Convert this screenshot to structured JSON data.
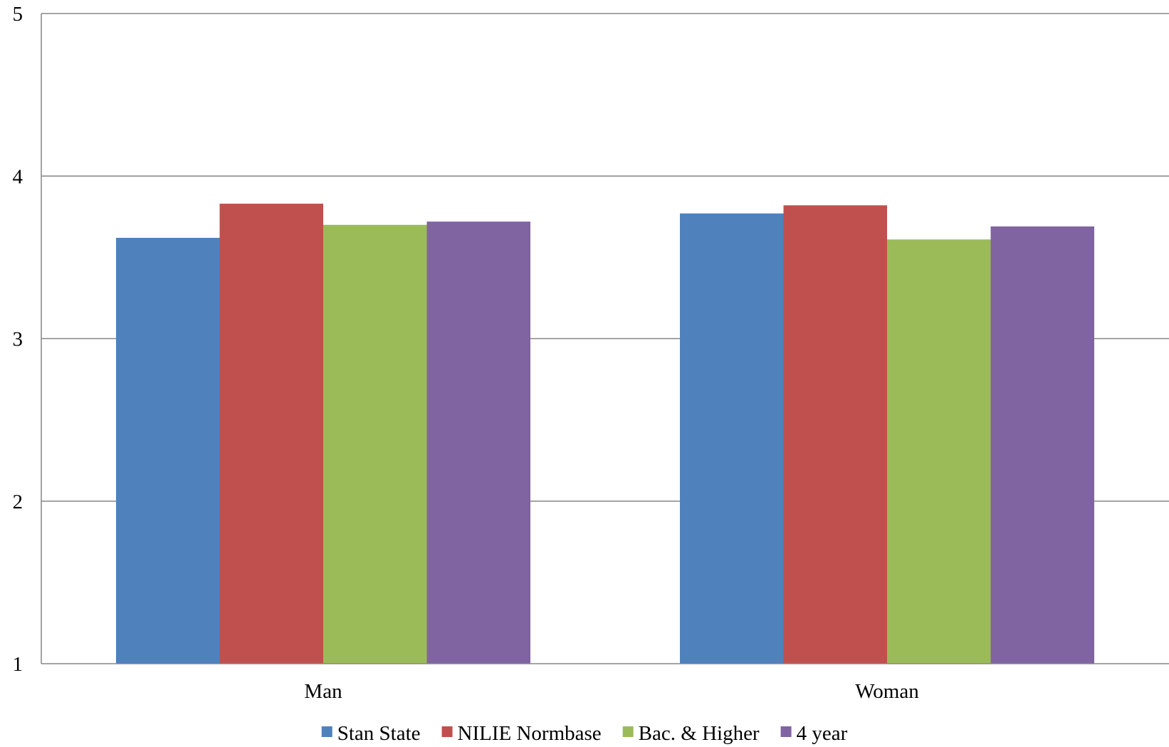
{
  "chart_data": {
    "type": "bar",
    "title": "",
    "xlabel": "",
    "ylabel": "",
    "categories": [
      "Man",
      "Woman"
    ],
    "series": [
      {
        "name": "Stan State",
        "color": "#4F81BD",
        "values": [
          3.62,
          3.77
        ]
      },
      {
        "name": "NILIE Normbase",
        "color": "#C0504D",
        "values": [
          3.83,
          3.82
        ]
      },
      {
        "name": "Bac. & Higher",
        "color": "#9BBB59",
        "values": [
          3.7,
          3.61
        ]
      },
      {
        "name": "4 year",
        "color": "#8064A2",
        "values": [
          3.72,
          3.69
        ]
      }
    ],
    "ylim": [
      1,
      5
    ],
    "yticks": [
      "1",
      "2",
      "3",
      "4",
      "5"
    ],
    "grid": true,
    "legend_position": "bottom"
  }
}
